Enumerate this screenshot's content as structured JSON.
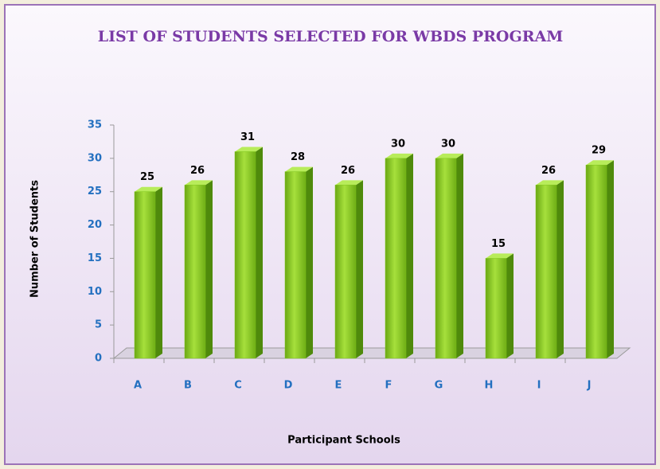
{
  "chart_data": {
    "type": "bar",
    "title": "LIST OF STUDENTS SELECTED FOR WBDS PROGRAM",
    "x_label": "Participant Schools",
    "y_label": "Number of Students",
    "categories": [
      "A",
      "B",
      "C",
      "D",
      "E",
      "F",
      "G",
      "H",
      "I",
      "J"
    ],
    "values": [
      25,
      26,
      31,
      28,
      26,
      30,
      30,
      15,
      26,
      29
    ],
    "color": "#7cc418",
    "ylim": [
      0,
      35
    ],
    "yticks": [
      0,
      5,
      10,
      15,
      20,
      25,
      30,
      35
    ],
    "grid": false
  }
}
